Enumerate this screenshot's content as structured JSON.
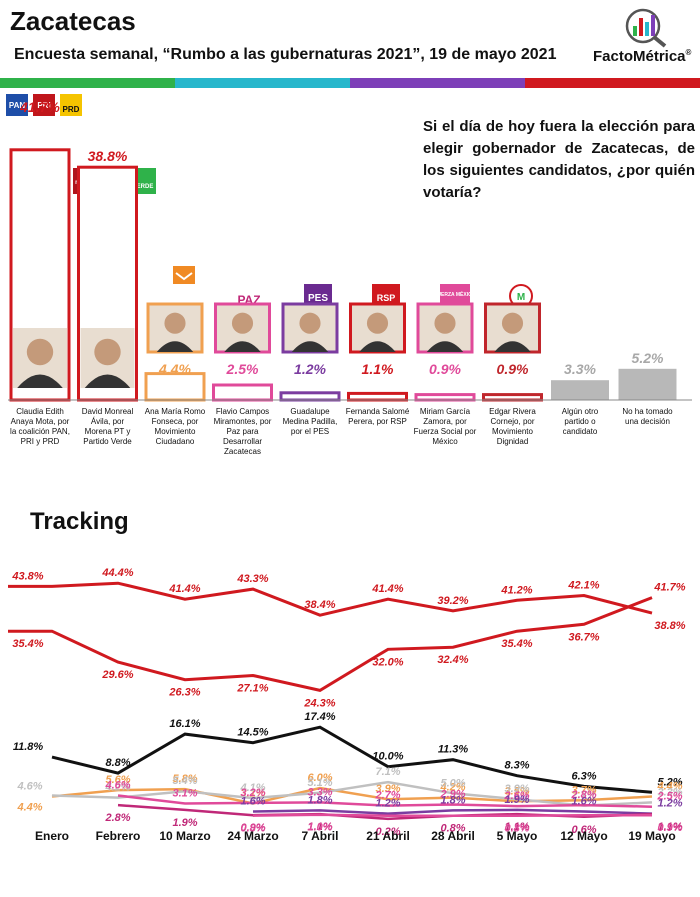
{
  "header": {
    "title": "Zacatecas",
    "subtitle": "Encuesta semanal, “Rumbo a las gubernaturas 2021”, 19 de mayo 2021",
    "brand": "FactoMétrica",
    "brand_mark": "®"
  },
  "question": "Si el día de hoy fuera la elección para elegir gobernador de Zacatecas, de los siguientes candidatos, ¿por quién votaría?",
  "tracking_title": "Tracking",
  "colors": {
    "red": "#d0191f",
    "black": "#111111",
    "orange": "#f0a050",
    "gray": "#c0c0c0",
    "purple": "#7b3ca0",
    "pink": "#e04a9a",
    "magenta": "#c02878",
    "green": "#2fb24a",
    "cyan": "#27b7cc",
    "violet": "#7d3fb8"
  },
  "badges": {
    "pan": "PAN",
    "pri": "PRI",
    "prd": "PRD",
    "morena": "morena",
    "pt": "PT",
    "verde": "VERDE",
    "paz": "PAZ",
    "pes": "PES",
    "rsp": "RSP",
    "fuerza": "FUERZA MÉXICO"
  },
  "chart_data": [
    {
      "type": "bar",
      "categories": [
        "Claudia Edith Anaya Mota, por la coalición PAN, PRI y PRD",
        "David Monreal Ávila, por Morena PT y Partido Verde",
        "Ana María Romo Fonseca, por Movimiento Ciudadano",
        "Flavio Campos Miramontes, por Paz para Desarrollar Zacatecas",
        "Guadalupe Medina Padilla, por el PES",
        "Fernanda Salomé Perera, por RSP",
        "Miriam García Zamora, por Fuerza Social por México",
        "Edgar Rivera Cornejo, por Movimiento Dignidad",
        "Algún otro partido o candidato",
        "No ha tomado una decisión"
      ],
      "label_lines": [
        [
          "Claudia Edith",
          "Anaya Mota, por",
          "la coalición PAN,",
          "PRI y PRD"
        ],
        [
          "David Monreal",
          "Ávila, por",
          "Morena PT y",
          "Partido Verde"
        ],
        [
          "Ana María Romo",
          "Fonseca, por",
          "Movimiento",
          "Ciudadano"
        ],
        [
          "Flavio Campos",
          "Miramontes, por",
          "Paz para",
          "Desarrollar",
          "Zacatecas"
        ],
        [
          "Guadalupe",
          "Medina Padilla,",
          "por el PES"
        ],
        [
          "Fernanda Salomé",
          "Perera, por RSP"
        ],
        [
          "Miriam García",
          "Zamora, por",
          "Fuerza Social por",
          "México"
        ],
        [
          "Edgar Rivera",
          "Cornejo, por",
          "Movimiento",
          "Dignidad"
        ],
        [
          "Algún otro",
          "partido o",
          "candidato"
        ],
        [
          "No ha tomado",
          "una decisión"
        ]
      ],
      "values": [
        41.7,
        38.8,
        4.4,
        2.5,
        1.2,
        1.1,
        0.9,
        0.9,
        3.3,
        5.2
      ],
      "value_labels": [
        "41.7%",
        "38.8%",
        "4.4%",
        "2.5%",
        "1.2%",
        "1.1%",
        "0.9%",
        "0.9%",
        "3.3%",
        "5.2%"
      ],
      "colors": [
        "#d0191f",
        "#d0191f",
        "#f0a050",
        "#e04a9a",
        "#7b3ca0",
        "#d0191f",
        "#e04a9a",
        "#c0262c",
        "#b8b8b8",
        "#b8b8b8"
      ],
      "ylim": [
        0,
        42
      ]
    },
    {
      "type": "line",
      "x": [
        "Enero",
        "Febrero",
        "10 Marzo",
        "24 Marzo",
        "7 Abril",
        "21 Abril",
        "28 Abril",
        "5 Mayo",
        "12 Mayo",
        "19 Mayo"
      ],
      "ylim": [
        0,
        45
      ],
      "series": [
        {
          "color": "#d0191f",
          "values": [
            43.8,
            44.4,
            41.4,
            43.3,
            38.4,
            41.4,
            39.2,
            41.2,
            42.1,
            38.8
          ],
          "labels": [
            "43.8%",
            "44.4%",
            "41.4%",
            "43.3%",
            "38.4%",
            "41.4%",
            "39.2%",
            "41.2%",
            "42.1%",
            "38.8%"
          ]
        },
        {
          "color": "#d0191f",
          "values": [
            35.4,
            29.6,
            26.3,
            27.1,
            24.3,
            32.0,
            32.4,
            35.4,
            36.7,
            41.7
          ],
          "labels": [
            "35.4%",
            "29.6%",
            "26.3%",
            "27.1%",
            "24.3%",
            "32.0%",
            "32.4%",
            "35.4%",
            "36.7%",
            "41.7%"
          ]
        },
        {
          "color": "#111111",
          "values": [
            11.8,
            8.8,
            16.1,
            14.5,
            17.4,
            10.0,
            11.3,
            8.3,
            6.3,
            5.2
          ],
          "labels": [
            "11.8%",
            "8.8%",
            "16.1%",
            "14.5%",
            "17.4%",
            "10.0%",
            "11.3%",
            "8.3%",
            "6.3%",
            "5.2%"
          ]
        },
        {
          "color": "#f0a050",
          "values": [
            4.4,
            5.6,
            5.8,
            3.1,
            6.0,
            3.9,
            4.2,
            3.5,
            3.7,
            4.4
          ],
          "labels": [
            "4.4%",
            "5.6%",
            "5.8%",
            "3.1%",
            "6.0%",
            "3.9%",
            "4.2%",
            "3.5%",
            "3.7%",
            "4.4%"
          ]
        },
        {
          "color": "#c0c0c0",
          "values": [
            4.6,
            4.2,
            5.4,
            4.1,
            5.1,
            7.1,
            5.0,
            3.9,
            2.7,
            3.3
          ],
          "labels": [
            "4.6%",
            "4.2%",
            "5.4%",
            "4.1%",
            "5.1%",
            "7.1%",
            "5.0%",
            "3.9%",
            "2.7%",
            "3.3%"
          ]
        },
        {
          "color": "#e04a9a",
          "values": [
            null,
            4.6,
            3.1,
            3.2,
            3.3,
            2.7,
            2.9,
            2.6,
            2.8,
            2.5
          ],
          "labels": [
            "",
            "4.6%",
            "3.1%",
            "3.2%",
            "3.3%",
            "2.7%",
            "2.9%",
            "2.6%",
            "2.8%",
            "2.5%"
          ]
        },
        {
          "color": "#7b3ca0",
          "values": [
            null,
            null,
            null,
            1.6,
            1.8,
            1.2,
            1.8,
            1.9,
            1.6,
            1.2
          ],
          "labels": [
            "",
            "",
            "",
            "1.6%",
            "1.8%",
            "1.2%",
            "1.8%",
            "1.9%",
            "1.6%",
            "1.2%"
          ]
        },
        {
          "color": "#c02878",
          "values": [
            null,
            2.8,
            1.9,
            0.9,
            1.1,
            0.2,
            0.8,
            1.1,
            0.6,
            1.1
          ],
          "labels": [
            "",
            "2.8%",
            "1.9%",
            "0.9%",
            "1.1%",
            "0.2%",
            "0.8%",
            "1.1%",
            "0.6%",
            "1.1%"
          ]
        },
        {
          "color": "#e04a9a",
          "values": [
            null,
            null,
            null,
            0.8,
            1.0,
            0.8,
            0.8,
            0.8,
            0.9,
            0.9
          ],
          "labels": [
            "",
            "",
            "",
            "0.8%",
            "1.0%",
            "",
            "",
            "0.8%",
            "",
            "0.9%"
          ]
        }
      ]
    }
  ]
}
